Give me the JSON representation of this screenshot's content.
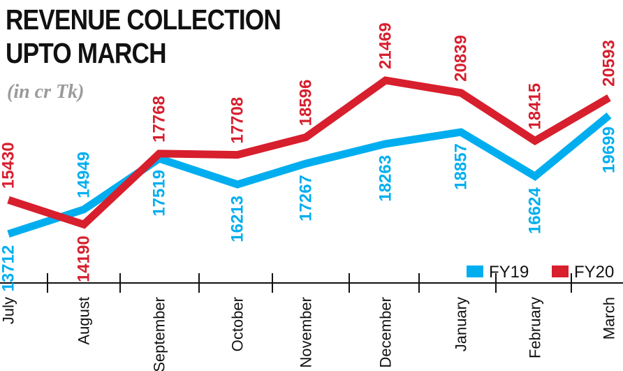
{
  "title_line1": "REVENUE COLLECTION",
  "title_line2": "UPTO MARCH",
  "subtitle": "(in cr Tk)",
  "chart_data": {
    "type": "line",
    "title": "REVENUE COLLECTION UPTO MARCH",
    "subtitle": "(in cr Tk)",
    "categories": [
      "July",
      "August",
      "September",
      "October",
      "November",
      "December",
      "January",
      "February",
      "March"
    ],
    "series": [
      {
        "name": "FY19",
        "color": "#00aeef",
        "values": [
          13712,
          14949,
          17519,
          16213,
          17267,
          18263,
          18857,
          16624,
          19699
        ]
      },
      {
        "name": "FY20",
        "color": "#d71f2e",
        "values": [
          15430,
          14190,
          17768,
          17708,
          18596,
          21469,
          20839,
          18415,
          20593
        ]
      }
    ],
    "legend_position": "bottom-right",
    "grid": false
  }
}
